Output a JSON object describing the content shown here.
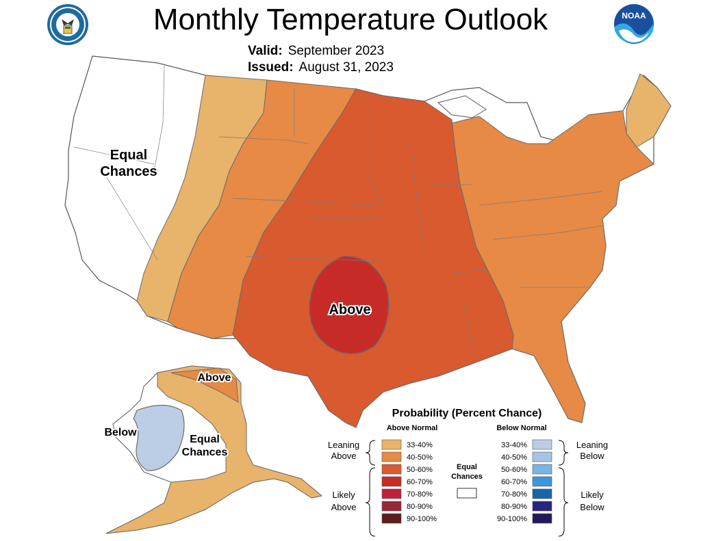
{
  "header": {
    "title": "Monthly Temperature Outlook",
    "valid_label": "Valid:",
    "valid_value": "September 2023",
    "issued_label": "Issued:",
    "issued_value": "August 31, 2023",
    "left_logo": "Department of Commerce seal",
    "right_logo": "NOAA logo"
  },
  "map": {
    "regions": {
      "west": "Equal Chances",
      "center": "Above",
      "alaska_north": "Above",
      "alaska_west": "Below",
      "alaska_middle": "Equal Chances"
    },
    "category_colors": {
      "equal": "#ffffff",
      "above_33_40": "#e8b36a",
      "above_40_50": "#e68a45",
      "above_50_60": "#d95a2e",
      "above_60_70": "#c72b27",
      "below_33_40": "#bccde6"
    }
  },
  "legend": {
    "title": "Probability (Percent Chance)",
    "above_header": "Above Normal",
    "below_header": "Below Normal",
    "above": [
      {
        "label": "33-40%",
        "color": "#e8b36a"
      },
      {
        "label": "40-50%",
        "color": "#e68a45"
      },
      {
        "label": "50-60%",
        "color": "#d95a2e"
      },
      {
        "label": "60-70%",
        "color": "#c72b27"
      },
      {
        "label": "70-80%",
        "color": "#c0203f"
      },
      {
        "label": "80-90%",
        "color": "#922a3a"
      },
      {
        "label": "90-100%",
        "color": "#5c1d1d"
      }
    ],
    "below": [
      {
        "label": "33-40%",
        "color": "#bccde6"
      },
      {
        "label": "40-50%",
        "color": "#a3c4e6"
      },
      {
        "label": "50-60%",
        "color": "#79b4e3"
      },
      {
        "label": "60-70%",
        "color": "#3c97da"
      },
      {
        "label": "70-80%",
        "color": "#1a64a8"
      },
      {
        "label": "80-90%",
        "color": "#2a2482"
      },
      {
        "label": "90-100%",
        "color": "#211a5a"
      }
    ],
    "equal_chances": "Equal Chances",
    "leaning_above": "Leaning Above",
    "likely_above": "Likely Above",
    "leaning_below": "Leaning Below",
    "likely_below": "Likely Below"
  }
}
